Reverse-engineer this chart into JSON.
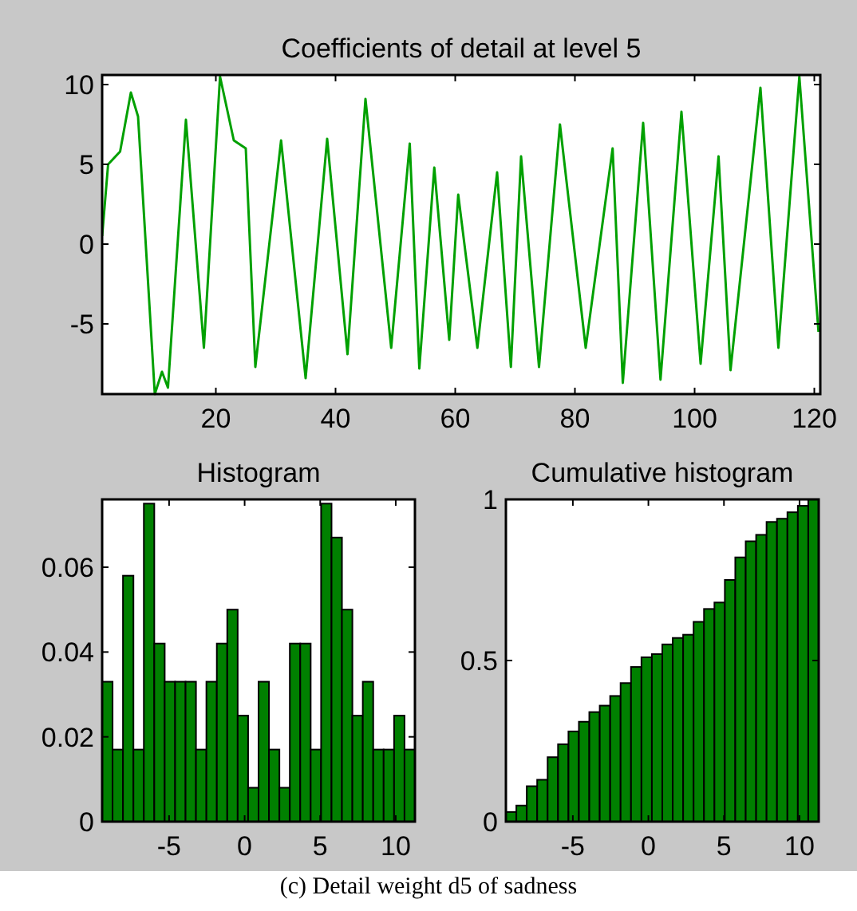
{
  "chart_data": [
    {
      "type": "line",
      "title": "Coefficients of detail at level 5",
      "xlim": [
        1,
        121
      ],
      "ylim": [
        -9.4,
        10.6
      ],
      "xticks": [
        20,
        40,
        60,
        80,
        100,
        120
      ],
      "yticks": [
        -5,
        0,
        5,
        10
      ],
      "grid": false,
      "marker": "none",
      "line_style": "solid",
      "annotations": [
        "(c) Detail weight d5 of sadness"
      ],
      "series": [
        {
          "color": "#00a000",
          "x": [
            1,
            2,
            4,
            5.8,
            7,
            9.8,
            11,
            12,
            15,
            18,
            20.7,
            23,
            25,
            26.6,
            30.9,
            35,
            38.6,
            42,
            45,
            49.3,
            52.4,
            54,
            56.5,
            59,
            60.5,
            63.7,
            67,
            69.3,
            71,
            74,
            77.5,
            81.8,
            86.3,
            88,
            91.4,
            94.3,
            97.8,
            101,
            104,
            106,
            111,
            114,
            117.5,
            120.7
          ],
          "values": [
            0.5,
            5,
            5.8,
            9.5,
            8,
            -9.4,
            -8,
            -9,
            7.8,
            -6.5,
            10.5,
            6.5,
            6,
            -7.7,
            6.5,
            -8.4,
            6.6,
            -6.9,
            9.1,
            -6.5,
            6.3,
            -7.8,
            4.8,
            -6,
            3.1,
            -6.5,
            4.5,
            -7.7,
            5.5,
            -7.7,
            7.5,
            -6.5,
            6,
            -8.7,
            7.6,
            -8.5,
            8.3,
            -7.5,
            5.5,
            -7.9,
            9.8,
            -6.5,
            10.5,
            -5.5
          ]
        }
      ]
    },
    {
      "type": "histogram",
      "title": "Histogram",
      "color": "#008000",
      "xlim": [
        -9.43,
        11.27
      ],
      "ylim": [
        0,
        0.076
      ],
      "xticks": [
        -5,
        0,
        5,
        10
      ],
      "yticks": [
        0,
        0.02,
        0.04,
        0.06
      ],
      "grid": false,
      "bins": [
        -9.43,
        -8.74,
        -8.05,
        -7.36,
        -6.67,
        -5.98,
        -5.29,
        -4.6,
        -3.91,
        -3.22,
        -2.53,
        -1.84,
        -1.15,
        -0.46,
        0.23,
        0.92,
        1.61,
        2.3,
        2.99,
        3.68,
        4.37,
        5.06,
        5.75,
        6.44,
        7.13,
        7.82,
        8.51,
        9.2,
        9.89,
        10.58,
        11.27
      ],
      "values": [
        0.033,
        0.017,
        0.058,
        0.017,
        0.075,
        0.042,
        0.033,
        0.033,
        0.033,
        0.017,
        0.033,
        0.042,
        0.05,
        0.025,
        0.008,
        0.033,
        0.017,
        0.008,
        0.042,
        0.042,
        0.017,
        0.075,
        0.067,
        0.05,
        0.025,
        0.033,
        0.017,
        0.017,
        0.025,
        0.017
      ]
    },
    {
      "type": "histogram",
      "title": "Cumulative histogram",
      "color": "#008000",
      "xlim": [
        -9.43,
        11.27
      ],
      "ylim": [
        0,
        1
      ],
      "xticks": [
        -5,
        0,
        5,
        10
      ],
      "yticks": [
        0,
        0.5,
        1
      ],
      "grid": false,
      "bins": [
        -9.43,
        -8.74,
        -8.05,
        -7.36,
        -6.67,
        -5.98,
        -5.29,
        -4.6,
        -3.91,
        -3.22,
        -2.53,
        -1.84,
        -1.15,
        -0.46,
        0.23,
        0.92,
        1.61,
        2.3,
        2.99,
        3.68,
        4.37,
        5.06,
        5.75,
        6.44,
        7.13,
        7.82,
        8.51,
        9.2,
        9.89,
        10.58,
        11.27
      ],
      "values": [
        0.03,
        0.05,
        0.11,
        0.13,
        0.2,
        0.24,
        0.28,
        0.31,
        0.34,
        0.36,
        0.39,
        0.43,
        0.48,
        0.51,
        0.52,
        0.55,
        0.57,
        0.58,
        0.62,
        0.66,
        0.68,
        0.75,
        0.82,
        0.87,
        0.89,
        0.93,
        0.94,
        0.96,
        0.98,
        1
      ]
    }
  ]
}
